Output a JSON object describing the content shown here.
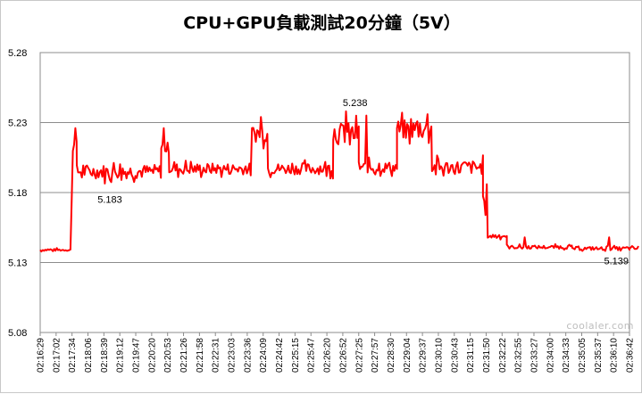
{
  "chart_data": {
    "type": "line",
    "title": "CPU+GPU負載測試20分鐘（5V）",
    "xlabel": "",
    "ylabel": "",
    "ylim": [
      5.08,
      5.28
    ],
    "yticks": [
      "5.28",
      "5.23",
      "5.18",
      "5.13",
      "5.08"
    ],
    "grid": true,
    "legend": "none",
    "line_color": "#ff0000",
    "x_ticks": [
      "02:16:29",
      "02:17:02",
      "02:17:34",
      "02:18:06",
      "02:18:39",
      "02:19:12",
      "02:19:47",
      "02:20:20",
      "02:20:53",
      "02:21:26",
      "02:21:58",
      "02:22:31",
      "02:23:03",
      "02:23:36",
      "02:24:09",
      "02:24:42",
      "02:25:15",
      "02:25:47",
      "02:26:20",
      "02:26:52",
      "02:27:25",
      "02:27:57",
      "02:28:30",
      "02:29:04",
      "02:29:37",
      "02:30:10",
      "02:30:43",
      "02:31:15",
      "02:31:50",
      "02:32:22",
      "02:32:55",
      "02:33:27",
      "02:34:00",
      "02:34:33",
      "02:35:05",
      "02:35:37",
      "02:36:10",
      "02:36:42"
    ],
    "segments": [
      {
        "from": 0,
        "to": 1.9,
        "level": 5.139,
        "noise": 0.0008
      },
      {
        "from": 1.9,
        "to": 2.05,
        "level": 5.139,
        "ramp_to": 5.205,
        "noise": 0.001
      },
      {
        "from": 2.05,
        "to": 2.3,
        "level": 5.215,
        "noise": 0.004
      },
      {
        "from": 2.3,
        "to": 7.6,
        "level": 5.195,
        "noise": 0.005
      },
      {
        "from": 7.6,
        "to": 8.1,
        "level": 5.212,
        "noise": 0.004
      },
      {
        "from": 8.1,
        "to": 13.3,
        "level": 5.197,
        "noise": 0.004
      },
      {
        "from": 13.3,
        "to": 14.3,
        "level": 5.222,
        "noise": 0.006
      },
      {
        "from": 14.3,
        "to": 18.4,
        "level": 5.197,
        "noise": 0.004
      },
      {
        "from": 18.4,
        "to": 20.0,
        "level": 5.222,
        "noise": 0.008
      },
      {
        "from": 20.0,
        "to": 22.4,
        "level": 5.198,
        "noise": 0.004
      },
      {
        "from": 22.4,
        "to": 24.6,
        "level": 5.225,
        "noise": 0.007
      },
      {
        "from": 24.6,
        "to": 27.8,
        "level": 5.198,
        "noise": 0.005
      },
      {
        "from": 27.8,
        "to": 28.1,
        "level": 5.18,
        "ramp_to": 5.15,
        "noise": 0.002
      },
      {
        "from": 28.1,
        "to": 29.3,
        "level": 5.149,
        "noise": 0.0015
      },
      {
        "from": 29.3,
        "to": 33.4,
        "level": 5.141,
        "noise": 0.0012
      },
      {
        "from": 33.4,
        "to": 37.6,
        "level": 5.14,
        "noise": 0.0012
      }
    ],
    "spikes": [
      {
        "x": 2.25,
        "y": 5.226
      },
      {
        "x": 7.78,
        "y": 5.226
      },
      {
        "x": 13.9,
        "y": 5.234
      },
      {
        "x": 19.2,
        "y": 5.238
      },
      {
        "x": 20.5,
        "y": 5.235
      },
      {
        "x": 24.3,
        "y": 5.236
      },
      {
        "x": 28.0,
        "y": 5.186
      },
      {
        "x": 30.4,
        "y": 5.148
      },
      {
        "x": 35.7,
        "y": 5.148
      }
    ],
    "annotations": [
      {
        "text": "5.183",
        "x": 3.6,
        "y": 5.183
      },
      {
        "text": "5.238",
        "x": 19.0,
        "y": 5.238
      },
      {
        "text": "5.139",
        "x": 35.4,
        "y": 5.139
      }
    ]
  },
  "watermark": "coolaler.com"
}
